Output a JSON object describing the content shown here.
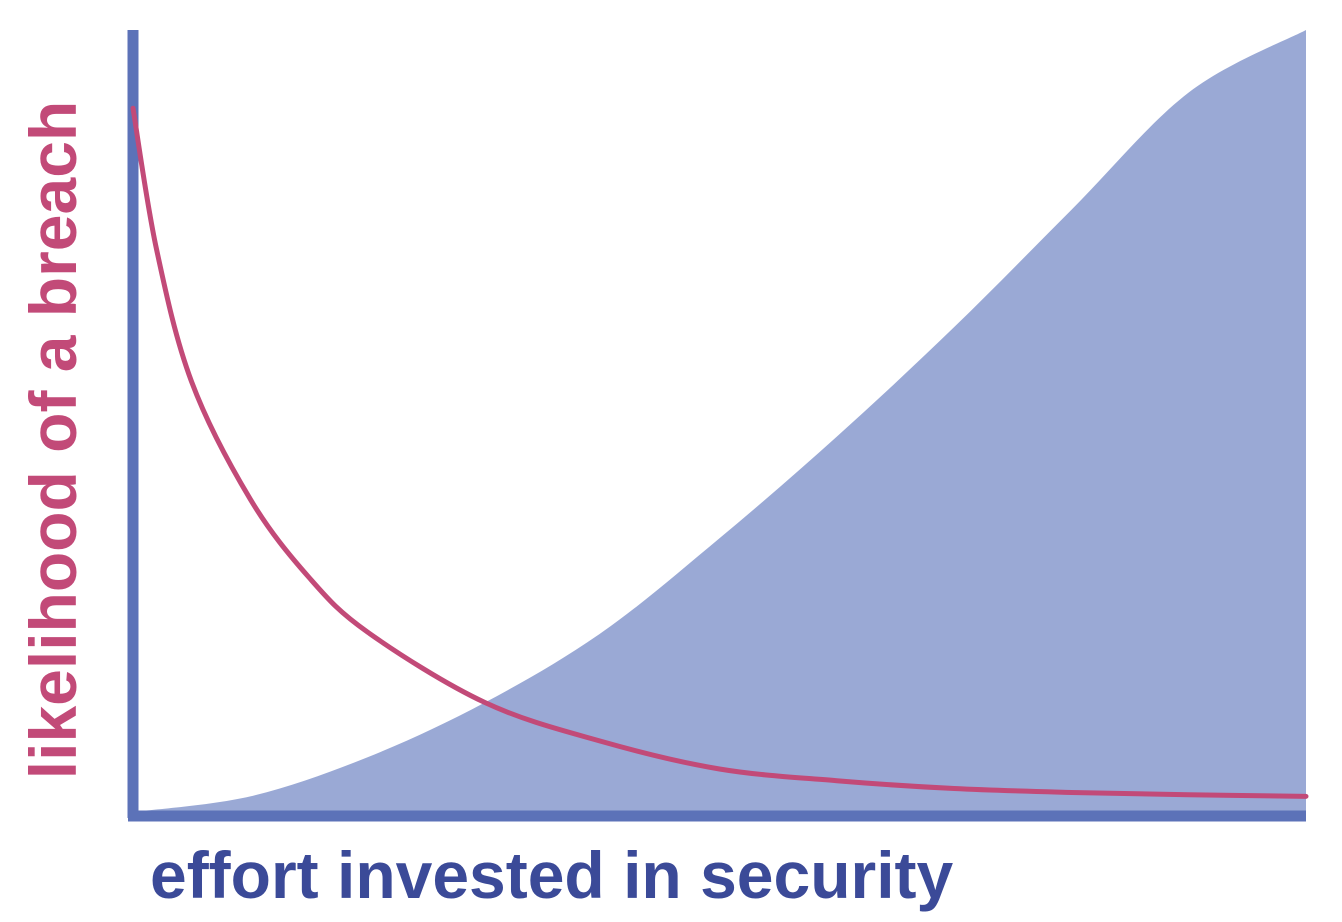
{
  "chart_data": {
    "type": "area",
    "title": "",
    "xlabel": "effort invested in security",
    "ylabel": "likelihood of a breach",
    "xlim": [
      0,
      1
    ],
    "ylim": [
      0,
      1
    ],
    "grid": false,
    "ticks": false,
    "series": [
      {
        "kind": "area",
        "shape": "increasing convex curve",
        "x": [
          0,
          0.1,
          0.2,
          0.3,
          0.4,
          0.5,
          0.6,
          0.7,
          0.8,
          0.9,
          1.0
        ],
        "values": [
          0,
          0.02,
          0.07,
          0.14,
          0.23,
          0.35,
          0.48,
          0.62,
          0.77,
          0.92,
          1.0
        ],
        "color": "#9aa9d5"
      },
      {
        "kind": "line",
        "shape": "decreasing convex curve",
        "x": [
          0,
          0.02,
          0.05,
          0.1,
          0.15,
          0.2,
          0.3,
          0.4,
          0.5,
          0.6,
          0.7,
          0.8,
          0.9,
          1.0
        ],
        "values": [
          0.9,
          0.72,
          0.55,
          0.4,
          0.3,
          0.23,
          0.14,
          0.09,
          0.055,
          0.04,
          0.03,
          0.025,
          0.022,
          0.02
        ],
        "color": "#c24a78"
      }
    ],
    "axis_color": "#5c72b8",
    "xlabel_color": "#3b4a98",
    "ylabel_color": "#c24a78"
  }
}
